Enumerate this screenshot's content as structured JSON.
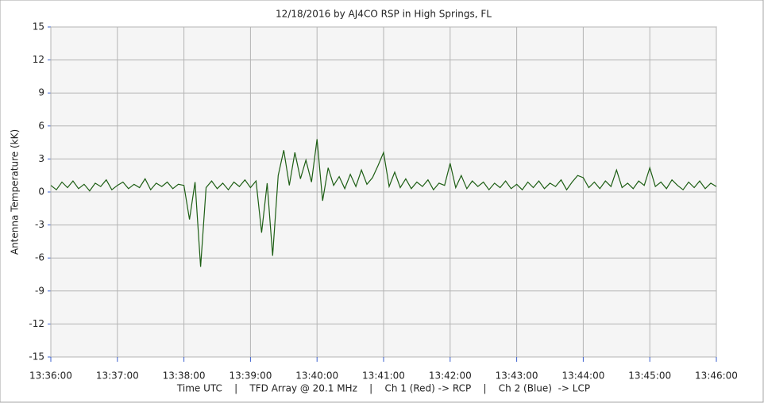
{
  "chart_data": {
    "type": "line",
    "title": "12/18/2016  by  AJ4CO RSP  in  High Springs, FL",
    "ylabel": "Antenna Temperature (kK)",
    "xlabel": "Time UTC    |    TFD Array @ 20.1 MHz    |    Ch 1 (Red) -> RCP    |    Ch 2 (Blue)  -> LCP",
    "xlim": [
      "13:36:00",
      "13:46:00"
    ],
    "xticks": [
      "13:36:00",
      "13:37:00",
      "13:38:00",
      "13:39:00",
      "13:40:00",
      "13:41:00",
      "13:42:00",
      "13:43:00",
      "13:44:00",
      "13:45:00",
      "13:46:00"
    ],
    "ylim": [
      -15,
      15
    ],
    "yticks": [
      15,
      12,
      9,
      6,
      3,
      0,
      -3,
      -6,
      -9,
      -12,
      -15
    ],
    "grid": true,
    "series": [
      {
        "color": "#1d5e14",
        "x": [
          "13:36:00",
          "13:36:05",
          "13:36:10",
          "13:36:15",
          "13:36:20",
          "13:36:25",
          "13:36:30",
          "13:36:35",
          "13:36:40",
          "13:36:45",
          "13:36:50",
          "13:36:55",
          "13:37:00",
          "13:37:05",
          "13:37:10",
          "13:37:15",
          "13:37:20",
          "13:37:25",
          "13:37:30",
          "13:37:35",
          "13:37:40",
          "13:37:45",
          "13:37:50",
          "13:37:55",
          "13:38:00",
          "13:38:05",
          "13:38:10",
          "13:38:15",
          "13:38:20",
          "13:38:25",
          "13:38:30",
          "13:38:35",
          "13:38:40",
          "13:38:45",
          "13:38:50",
          "13:38:55",
          "13:39:00",
          "13:39:05",
          "13:39:10",
          "13:39:15",
          "13:39:20",
          "13:39:25",
          "13:39:30",
          "13:39:35",
          "13:39:40",
          "13:39:45",
          "13:39:50",
          "13:39:55",
          "13:40:00",
          "13:40:05",
          "13:40:10",
          "13:40:15",
          "13:40:20",
          "13:40:25",
          "13:40:30",
          "13:40:35",
          "13:40:40",
          "13:40:45",
          "13:40:50",
          "13:40:55",
          "13:41:00",
          "13:41:05",
          "13:41:10",
          "13:41:15",
          "13:41:20",
          "13:41:25",
          "13:41:30",
          "13:41:35",
          "13:41:40",
          "13:41:45",
          "13:41:50",
          "13:41:55",
          "13:42:00",
          "13:42:05",
          "13:42:10",
          "13:42:15",
          "13:42:20",
          "13:42:25",
          "13:42:30",
          "13:42:35",
          "13:42:40",
          "13:42:45",
          "13:42:50",
          "13:42:55",
          "13:43:00",
          "13:43:05",
          "13:43:10",
          "13:43:15",
          "13:43:20",
          "13:43:25",
          "13:43:30",
          "13:43:35",
          "13:43:40",
          "13:43:45",
          "13:43:50",
          "13:43:55",
          "13:44:00",
          "13:44:05",
          "13:44:10",
          "13:44:15",
          "13:44:20",
          "13:44:25",
          "13:44:30",
          "13:44:35",
          "13:44:40",
          "13:44:45",
          "13:44:50",
          "13:44:55",
          "13:45:00",
          "13:45:05",
          "13:45:10",
          "13:45:15",
          "13:45:20",
          "13:45:25",
          "13:45:30",
          "13:45:35",
          "13:45:40",
          "13:45:45",
          "13:45:50",
          "13:45:55",
          "13:46:00"
        ],
        "values": [
          0.6,
          0.2,
          0.9,
          0.4,
          1.0,
          0.3,
          0.7,
          0.1,
          0.8,
          0.5,
          1.1,
          0.2,
          0.6,
          0.9,
          0.3,
          0.7,
          0.4,
          1.2,
          0.2,
          0.8,
          0.5,
          0.9,
          0.3,
          0.7,
          0.6,
          -2.5,
          0.9,
          -6.8,
          0.4,
          1.0,
          0.3,
          0.8,
          0.2,
          0.9,
          0.5,
          1.1,
          0.4,
          1.0,
          -3.7,
          0.8,
          -5.8,
          1.5,
          3.8,
          0.6,
          3.6,
          1.2,
          2.9,
          0.9,
          4.8,
          -0.8,
          2.2,
          0.6,
          1.4,
          0.3,
          1.6,
          0.5,
          2.0,
          0.7,
          1.3,
          2.4,
          3.6,
          0.5,
          1.8,
          0.4,
          1.2,
          0.3,
          0.9,
          0.5,
          1.1,
          0.2,
          0.8,
          0.6,
          2.6,
          0.4,
          1.5,
          0.3,
          1.0,
          0.5,
          0.9,
          0.2,
          0.8,
          0.4,
          1.0,
          0.3,
          0.7,
          0.2,
          0.9,
          0.4,
          1.0,
          0.3,
          0.8,
          0.5,
          1.1,
          0.2,
          0.9,
          1.5,
          1.3,
          0.4,
          0.9,
          0.3,
          1.0,
          0.5,
          2.0,
          0.4,
          0.8,
          0.3,
          1.0,
          0.6,
          2.2,
          0.5,
          0.9,
          0.3,
          1.1,
          0.6,
          0.2,
          0.9,
          0.4,
          1.0,
          0.3,
          0.8,
          0.5
        ]
      }
    ]
  }
}
